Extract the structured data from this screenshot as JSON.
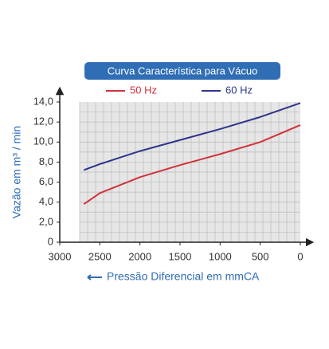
{
  "chart_data": {
    "type": "line",
    "title": "Curva Característica para Vácuo",
    "y_label": "Vazão em m³ / min",
    "x_label": "Pressão Diferencial em mmCA",
    "x": [
      2700,
      2500,
      2000,
      1500,
      1000,
      500,
      0
    ],
    "series": [
      {
        "name": "50 Hz",
        "color": "#d0313a",
        "values": [
          3.8,
          4.9,
          6.5,
          7.7,
          8.8,
          10.0,
          11.7
        ]
      },
      {
        "name": "60 Hz",
        "color": "#2e3589",
        "values": [
          7.2,
          7.8,
          9.1,
          10.2,
          11.3,
          12.5,
          13.9
        ]
      }
    ],
    "xlim": [
      3000,
      0
    ],
    "xticks": [
      3000,
      2500,
      2000,
      1500,
      1000,
      500,
      0
    ],
    "ylim": [
      0,
      14
    ],
    "yticks": [
      0,
      {
        "value": 2,
        "label": "2,0"
      },
      {
        "value": 4,
        "label": "4,0"
      },
      {
        "value": 6,
        "label": "6,0"
      },
      {
        "value": 8,
        "label": "8,0"
      },
      {
        "value": 10,
        "label": "10,0"
      },
      {
        "value": 12,
        "label": "12,0"
      },
      {
        "value": 14,
        "label": "14,0"
      }
    ],
    "grid": true
  }
}
